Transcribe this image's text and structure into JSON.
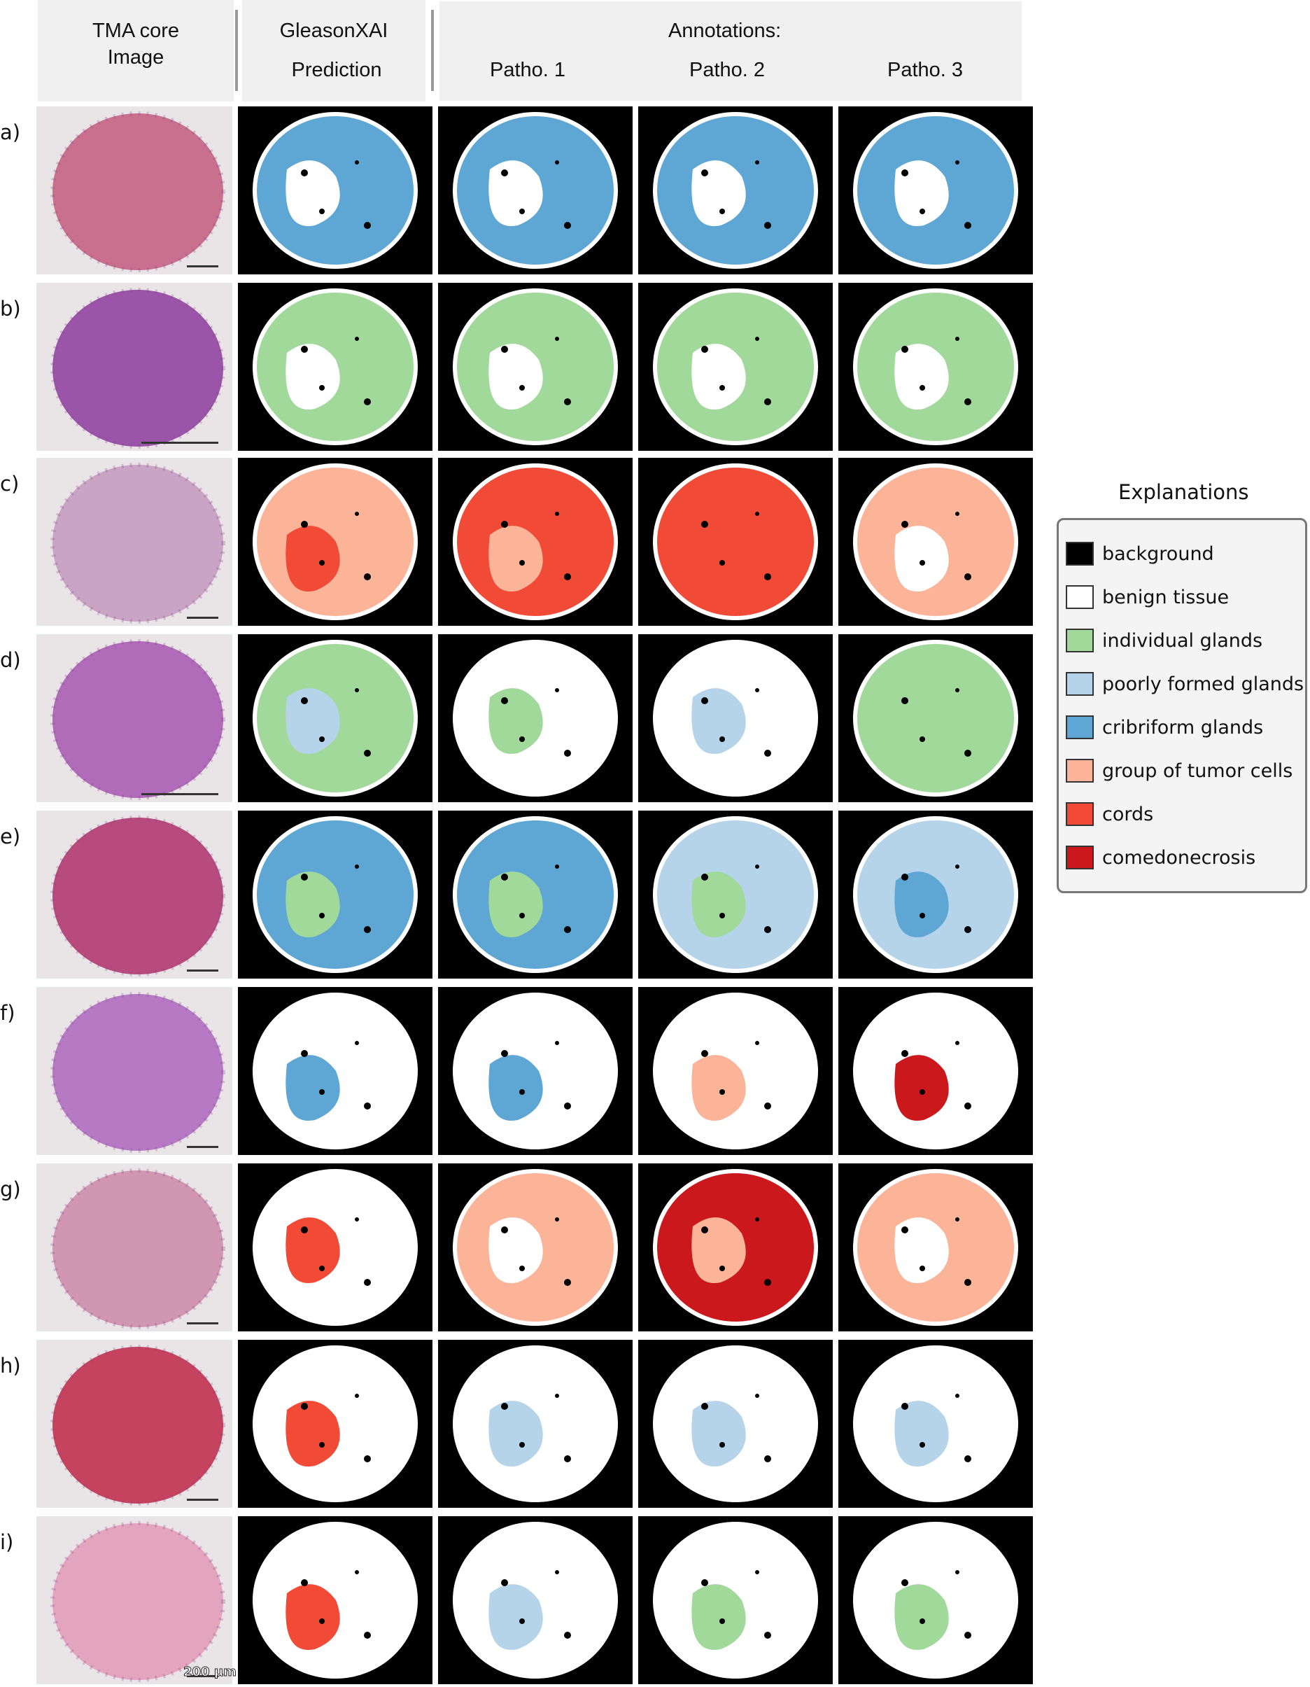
{
  "header": {
    "col_image": [
      "TMA core",
      "Image"
    ],
    "col_prediction": [
      "GleasonXAI",
      "Prediction"
    ],
    "annotations_title": "Annotations:",
    "patho_labels": [
      "Patho. 1",
      "Patho. 2",
      "Patho. 3"
    ]
  },
  "rows": [
    {
      "label": "a)"
    },
    {
      "label": "b)"
    },
    {
      "label": "c)"
    },
    {
      "label": "d)"
    },
    {
      "label": "e)"
    },
    {
      "label": "f)"
    },
    {
      "label": "g)"
    },
    {
      "label": "h)"
    },
    {
      "label": "i)"
    }
  ],
  "scale_bar_text": "200 µm",
  "legend": {
    "title": "Explanations",
    "items": [
      {
        "label": "background",
        "color": "#000000"
      },
      {
        "label": "benign tissue",
        "color": "#ffffff"
      },
      {
        "label": "individual glands",
        "color": "#a1d99b"
      },
      {
        "label": "poorly formed glands",
        "color": "#b5d4ea"
      },
      {
        "label": "cribriform glands",
        "color": "#5ea6d4"
      },
      {
        "label": "group of tumor cells",
        "color": "#fcb499"
      },
      {
        "label": "cords",
        "color": "#f14b37"
      },
      {
        "label": "comedonecrosis",
        "color": "#cb181d"
      }
    ]
  },
  "colors": {
    "header_bg": "#f0f0f0",
    "he_bg": "#e9e4e6"
  }
}
